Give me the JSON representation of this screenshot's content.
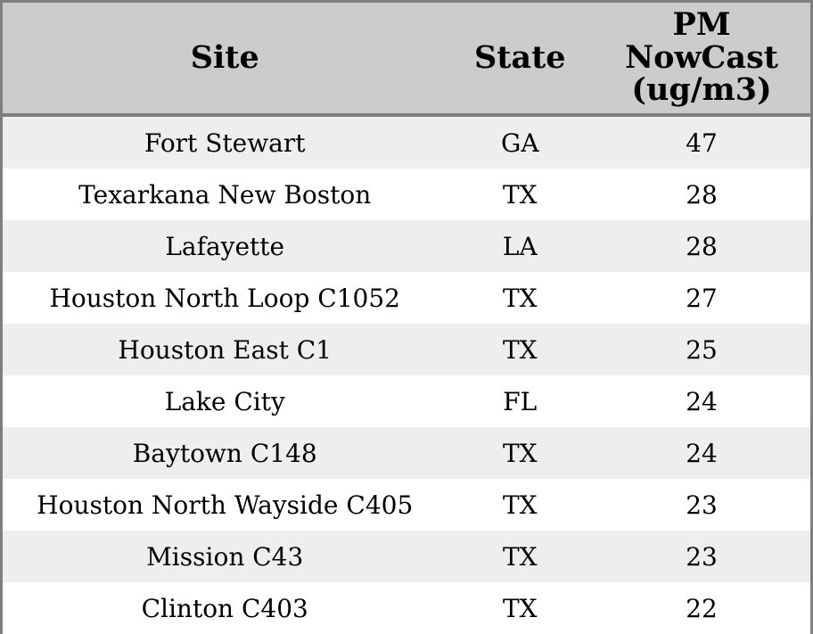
{
  "table": {
    "header": {
      "columns": [
        {
          "label": "Site"
        },
        {
          "label": "State"
        },
        {
          "label": "PM NowCast (ug/m3)",
          "label_lines": [
            "PM",
            "NowCast",
            "(ug/m3)"
          ]
        }
      ]
    },
    "rows": [
      {
        "site": "Fort Stewart",
        "state": "GA",
        "pm": "47"
      },
      {
        "site": "Texarkana New Boston",
        "state": "TX",
        "pm": "28"
      },
      {
        "site": "Lafayette",
        "state": "LA",
        "pm": "28"
      },
      {
        "site": "Houston North Loop C1052",
        "state": "TX",
        "pm": "27"
      },
      {
        "site": "Houston East C1",
        "state": "TX",
        "pm": "25"
      },
      {
        "site": "Lake City",
        "state": "FL",
        "pm": "24"
      },
      {
        "site": "Baytown C148",
        "state": "TX",
        "pm": "24"
      },
      {
        "site": "Houston North Wayside C405",
        "state": "TX",
        "pm": "23"
      },
      {
        "site": "Mission C43",
        "state": "TX",
        "pm": "23"
      },
      {
        "site": "Clinton C403",
        "state": "TX",
        "pm": "22"
      }
    ],
    "colors": {
      "header_background": "#cccccc",
      "row_stripe": "#eeeeee",
      "row_plain": "#ffffff",
      "border": "#7f7f7f",
      "text": "#000000"
    }
  },
  "chart_data": {
    "type": "table",
    "columns": [
      "Site",
      "State",
      "PM NowCast (ug/m3)"
    ],
    "rows": [
      [
        "Fort Stewart",
        "GA",
        47
      ],
      [
        "Texarkana New Boston",
        "TX",
        28
      ],
      [
        "Lafayette",
        "LA",
        28
      ],
      [
        "Houston North Loop C1052",
        "TX",
        27
      ],
      [
        "Houston East C1",
        "TX",
        25
      ],
      [
        "Lake City",
        "FL",
        24
      ],
      [
        "Baytown C148",
        "TX",
        24
      ],
      [
        "Houston North Wayside C405",
        "TX",
        23
      ],
      [
        "Mission C43",
        "TX",
        23
      ],
      [
        "Clinton C403",
        "TX",
        22
      ]
    ],
    "title": "",
    "layout_hints": {
      "striped_rows": true,
      "alignment": "center",
      "header_style": "bold gray band"
    }
  }
}
